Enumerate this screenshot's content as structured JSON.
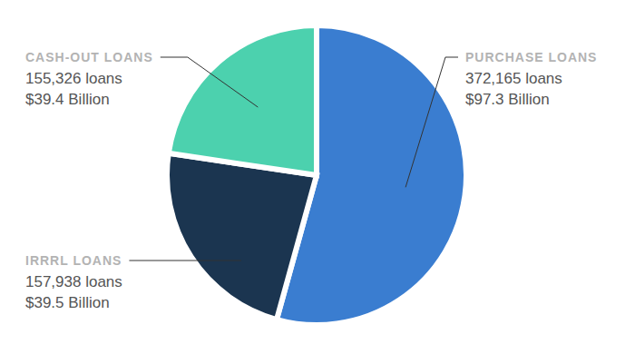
{
  "chart_data": {
    "type": "pie",
    "categories": [
      "PURCHASE LOANS",
      "IRRRL LOANS",
      "CASH-OUT LOANS"
    ],
    "values": [
      372165,
      157938,
      155326
    ],
    "value_labels": [
      "372,165 loans",
      "157,938 loans",
      "155,326 loans"
    ],
    "amounts": [
      97.3,
      39.5,
      39.4
    ],
    "amount_labels": [
      "$97.3 Billion",
      "$39.5 Billion",
      "$39.4 Billion"
    ],
    "colors": [
      "#3a7dd0",
      "#1b3550",
      "#4cd1ae"
    ],
    "data_labels": true
  }
}
